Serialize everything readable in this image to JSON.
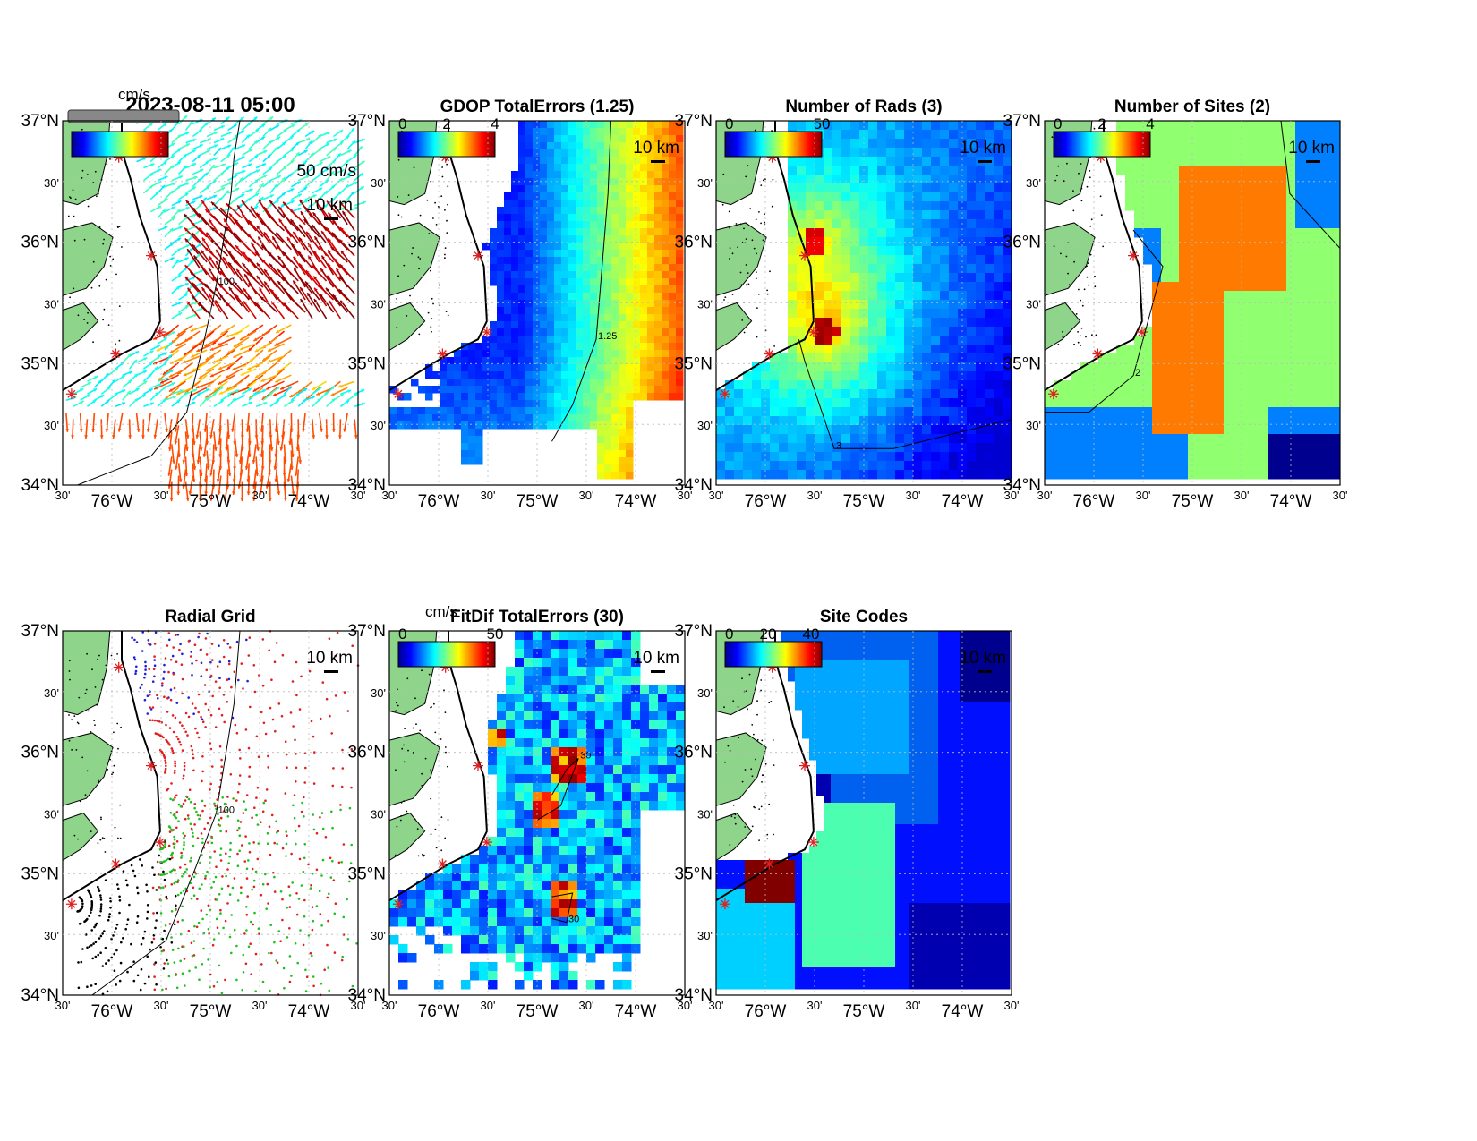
{
  "figure_date": "2023-08-11 05:00",
  "axes_labels": {
    "y": [
      "37°N",
      "30'",
      "36°N",
      "30'",
      "35°N",
      "30'",
      "34°N"
    ],
    "x": [
      "30'",
      "76°W",
      "30'",
      "75°W",
      "30'",
      "74°W",
      "30'"
    ]
  },
  "colormap_note": "jet",
  "colors": {
    "land": "#8ed48a",
    "coast": "#000000",
    "ocean": "#ffffff",
    "site_marker": "#e02020"
  },
  "scale_bar": "10 km",
  "panels": [
    {
      "id": "currents",
      "title": "2023-08-11 05:00",
      "unit_label": "cm/s",
      "ref_vector_label": "50 cm/s",
      "contour_label": "100",
      "cb_ticks": []
    },
    {
      "id": "gdop",
      "title": "GDOP TotalErrors (1.25)",
      "unit_label": "",
      "cb_ticks": [
        "0",
        "2",
        "4"
      ],
      "contour_label": "1.25"
    },
    {
      "id": "nrads",
      "title": "Number of Rads (3)",
      "unit_label": "",
      "cb_ticks": [
        "0",
        "50"
      ],
      "contour_label": "3"
    },
    {
      "id": "nsites",
      "title": "Number of Sites (2)",
      "unit_label": "",
      "cb_ticks": [
        "0",
        "2",
        "4"
      ],
      "contour_label": "2"
    },
    {
      "id": "radgrid",
      "title": "Radial Grid",
      "unit_label": "",
      "cb_ticks": [],
      "contour_label": "100"
    },
    {
      "id": "fitdif",
      "title": "FitDif TotalErrors (30)",
      "unit_label": "cm/s",
      "cb_ticks": [
        "0",
        "50"
      ],
      "contour_label": "30"
    },
    {
      "id": "sitecodes",
      "title": "Site Codes",
      "unit_label": "",
      "cb_ticks": [
        "0",
        "20",
        "40"
      ],
      "contour_label": ""
    }
  ],
  "chart_data": [
    {
      "type": "heatmap",
      "title": "2023-08-11 05:00",
      "field": "surface current vectors",
      "units": "cm/s",
      "reference_vector": "50 cm/s",
      "ylim": [
        "34°N",
        "37°N"
      ],
      "xlim": [
        "76°30'W",
        "73°30'W"
      ]
    },
    {
      "type": "heatmap",
      "title": "GDOP TotalErrors (1.25)",
      "colorbar": [
        0,
        4
      ],
      "contour": 1.25,
      "ylim": [
        "34°N",
        "37°N"
      ],
      "xlim": [
        "76°30'W",
        "73°30'W"
      ]
    },
    {
      "type": "heatmap",
      "title": "Number of Rads (3)",
      "colorbar": [
        0,
        50
      ],
      "contour": 3,
      "ylim": [
        "34°N",
        "37°N"
      ],
      "xlim": [
        "76°30'W",
        "73°30'W"
      ]
    },
    {
      "type": "heatmap",
      "title": "Number of Sites (2)",
      "colorbar": [
        0,
        4
      ],
      "contour": 2,
      "categories": [
        1,
        2,
        3,
        4
      ],
      "ylim": [
        "34°N",
        "37°N"
      ],
      "xlim": [
        "76°30'W",
        "73°30'W"
      ]
    },
    {
      "type": "scatter",
      "title": "Radial Grid",
      "series": [],
      "site_colors": [
        "blue",
        "red",
        "green",
        "black"
      ],
      "ylim": [
        "34°N",
        "37°N"
      ],
      "xlim": [
        "76°30'W",
        "73°30'W"
      ]
    },
    {
      "type": "heatmap",
      "title": "FitDif TotalErrors (30)",
      "units": "cm/s",
      "colorbar": [
        0,
        50
      ],
      "contour": 30,
      "ylim": [
        "34°N",
        "37°N"
      ],
      "xlim": [
        "76°30'W",
        "73°30'W"
      ]
    },
    {
      "type": "heatmap",
      "title": "Site Codes",
      "colorbar": [
        0,
        45
      ],
      "ylim": [
        "34°N",
        "37°N"
      ],
      "xlim": [
        "76°30'W",
        "73°30'W"
      ]
    }
  ]
}
